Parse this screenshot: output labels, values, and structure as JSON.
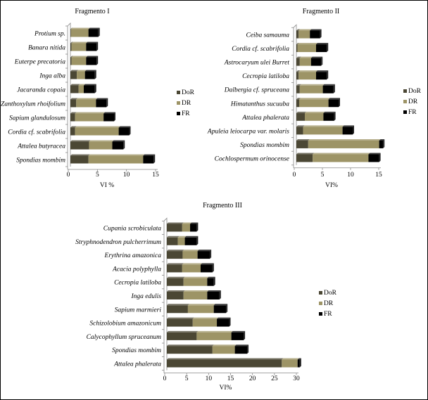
{
  "colors": {
    "DoR": "#4b4734",
    "DR": "#9d9466",
    "FR": "#000000"
  },
  "chart_data": [
    {
      "type": "bar",
      "orientation": "horizontal",
      "stacked": true,
      "title": "Fragmento I",
      "xlabel": "VI %",
      "xlim": [
        0,
        15
      ],
      "xticks": [
        0,
        5,
        10,
        15
      ],
      "legend": "right",
      "categories": [
        "Protium sp.",
        "Banara nitida",
        "Euterpe precatoria",
        "Inga alba",
        "Jacaranda copaia",
        "Zanthoxylum rhoifolium",
        "Sapium glandulosum",
        "Cordia cf. scabrifolia",
        "Attalea butyracea",
        "Spondias mombim"
      ],
      "series": [
        {
          "name": "DoR",
          "values": [
            0.1,
            0.2,
            0.2,
            1.1,
            1.4,
            1.0,
            0.8,
            0.8,
            3.2,
            3.1
          ]
        },
        {
          "name": "DR",
          "values": [
            3.0,
            2.5,
            2.5,
            1.4,
            0.9,
            3.4,
            4.9,
            7.5,
            4.0,
            9.4
          ]
        },
        {
          "name": "FR",
          "values": [
            1.7,
            1.8,
            1.8,
            1.7,
            1.9,
            1.8,
            1.8,
            1.8,
            1.9,
            1.8
          ]
        }
      ]
    },
    {
      "type": "bar",
      "orientation": "horizontal",
      "stacked": true,
      "title": "Fragmento II",
      "xlabel": "VI%",
      "xlim": [
        0,
        15
      ],
      "xticks": [
        0,
        5,
        10,
        15
      ],
      "legend": "right",
      "categories": [
        "Ceiba samauma",
        "Cordia cf. scabrifolia",
        "Astrocaryum ulei Burret",
        "Cecropia latiloba",
        "Dalbergia cf. spruceana",
        "Himatanthus sucuuba",
        "Attalea phalerata",
        "Apuleia leiocarpa var. molaris",
        "Spondias mombim",
        "Cochlospermum orinocense"
      ],
      "series": [
        {
          "name": "DoR",
          "values": [
            0.4,
            0.2,
            0.6,
            0.4,
            0.6,
            0.5,
            1.5,
            1.2,
            2.1,
            2.9
          ]
        },
        {
          "name": "DR",
          "values": [
            2.0,
            3.3,
            2.0,
            3.1,
            4.1,
            5.2,
            3.3,
            7.0,
            12.6,
            9.9
          ]
        },
        {
          "name": "FR",
          "values": [
            1.8,
            1.9,
            1.8,
            1.9,
            1.9,
            1.8,
            1.9,
            1.8,
            0.7,
            1.9
          ]
        }
      ]
    },
    {
      "type": "bar",
      "orientation": "horizontal",
      "stacked": true,
      "title": "Fragmento III",
      "xlabel": "VI%",
      "xlim": [
        0,
        30
      ],
      "xticks": [
        0,
        5,
        10,
        15,
        20,
        25,
        30
      ],
      "legend": "right",
      "categories": [
        "Cupania scrobiculata",
        "Stryphnodendron pulcherrimum",
        "Erythrina amazonica",
        "Acacia polyphylla",
        "Cecropia latiloba",
        "Inga edulis",
        "Sapium marmieri",
        "Schizolobium amazonicum",
        "Calycophyllum spruceanum",
        "Spondias mombim",
        "Attalea phalerata"
      ],
      "series": [
        {
          "name": "DoR",
          "values": [
            3.5,
            2.5,
            3.6,
            3.5,
            3.8,
            3.8,
            4.8,
            5.9,
            6.8,
            10.4,
            26.2
          ]
        },
        {
          "name": "DR",
          "values": [
            1.8,
            1.6,
            3.4,
            4.2,
            5.4,
            5.4,
            5.9,
            5.5,
            7.9,
            5.1,
            3.6
          ]
        },
        {
          "name": "FR",
          "values": [
            1.5,
            2.7,
            2.8,
            2.7,
            1.5,
            2.8,
            2.8,
            2.8,
            2.8,
            2.8,
            0.5
          ]
        }
      ]
    }
  ]
}
